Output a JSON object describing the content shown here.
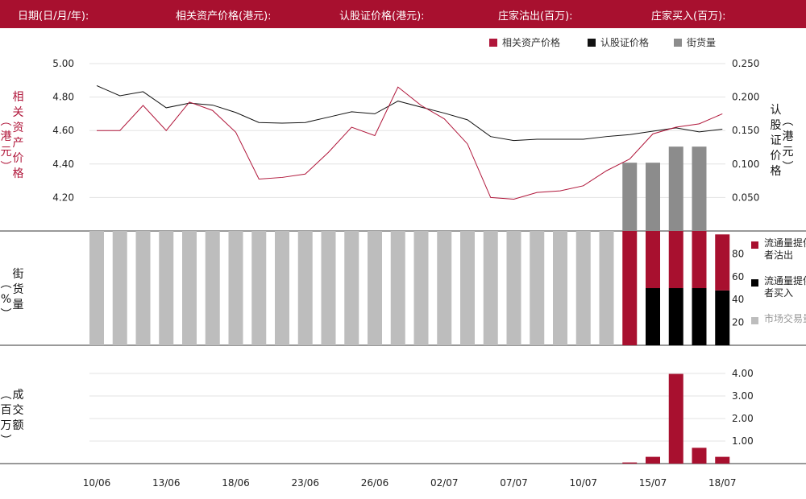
{
  "header": {
    "date_label": "日期(日/月/年):",
    "underlying_price_label": "相关资产价格(港元):",
    "warrant_price_label": "认股证价格(港元):",
    "mm_sell_label": "庄家沽出(百万):",
    "mm_buy_label": "庄家买入(百万):"
  },
  "legend": {
    "underlying": "相关资产价格",
    "warrant": "认股证价格",
    "outstanding": "街货量"
  },
  "axis_titles": {
    "left_top_main": "相关资产价格",
    "left_top_unit": "港元",
    "right_top_main": "认股证价格",
    "right_top_unit": "港元",
    "middle_main": "街货量",
    "middle_unit": "%",
    "bottom_main": "成交额",
    "bottom_unit": "百万"
  },
  "mid_legend": {
    "mm_sell": "流通量提供者沽出",
    "mm_buy": "流通量提供者买入",
    "market": "市场交易量"
  },
  "colors": {
    "brand": "#a8102f",
    "underlying": "#b0163a",
    "warrant": "#111111",
    "outstanding": "#8c8c8c",
    "market": "#bdbdbd",
    "mm_sell": "#a8102f",
    "mm_buy": "#000000"
  },
  "chart_data": {
    "type": "combo",
    "x_tick_labels": [
      "10/06",
      "13/06",
      "18/06",
      "23/06",
      "26/06",
      "02/07",
      "07/07",
      "10/07",
      "15/07",
      "18/07"
    ],
    "x_tick_indices": [
      0,
      3,
      6,
      9,
      12,
      15,
      18,
      21,
      24,
      27
    ],
    "n_days": 28,
    "price_panel": {
      "left_axis": {
        "ticks": [
          "5.00",
          "4.80",
          "4.60",
          "4.40",
          "4.20"
        ],
        "range": [
          4.0,
          5.0
        ]
      },
      "right_axis": {
        "ticks": [
          "0.250",
          "0.200",
          "0.150",
          "0.100",
          "0.050"
        ],
        "range": [
          0.0,
          0.25
        ]
      },
      "underlying": [
        4.6,
        4.6,
        4.75,
        4.6,
        4.77,
        4.72,
        4.59,
        4.31,
        4.32,
        4.34,
        4.47,
        4.62,
        4.57,
        4.86,
        4.75,
        4.67,
        4.52,
        4.2,
        4.19,
        4.23,
        4.24,
        4.27,
        4.36,
        4.43,
        4.58,
        4.62,
        4.64,
        4.7
      ],
      "warrant": [
        0.217,
        0.202,
        0.208,
        0.184,
        0.191,
        0.188,
        0.177,
        0.162,
        0.161,
        0.162,
        0.17,
        0.178,
        0.175,
        0.194,
        0.185,
        0.176,
        0.166,
        0.141,
        0.135,
        0.137,
        0.137,
        0.137,
        0.141,
        0.144,
        0.149,
        0.154,
        0.148,
        0.152
      ],
      "outstanding_pct": [
        null,
        null,
        null,
        null,
        null,
        null,
        null,
        null,
        null,
        null,
        null,
        null,
        null,
        null,
        null,
        null,
        null,
        null,
        null,
        null,
        null,
        null,
        null,
        102,
        102,
        126,
        126,
        null
      ],
      "outstanding_scale": [
        0,
        250
      ]
    },
    "share_panel": {
      "ticks": [
        "80",
        "60",
        "40",
        "20"
      ],
      "range": [
        0,
        100
      ],
      "mm_sell_pct": [
        0,
        0,
        0,
        0,
        0,
        0,
        0,
        0,
        0,
        0,
        0,
        0,
        0,
        0,
        0,
        0,
        0,
        0,
        0,
        0,
        0,
        0,
        0,
        100,
        50,
        50,
        50,
        49
      ],
      "mm_buy_pct": [
        0,
        0,
        0,
        0,
        0,
        0,
        0,
        0,
        0,
        0,
        0,
        0,
        0,
        0,
        0,
        0,
        0,
        0,
        0,
        0,
        0,
        0,
        0,
        0,
        50,
        50,
        50,
        48
      ],
      "market_pct": [
        100,
        100,
        100,
        100,
        100,
        100,
        100,
        100,
        100,
        100,
        100,
        100,
        100,
        100,
        100,
        100,
        100,
        100,
        100,
        100,
        100,
        100,
        100,
        0,
        0,
        0,
        0,
        0
      ]
    },
    "turnover_panel": {
      "ticks": [
        "4.00",
        "3.00",
        "2.00",
        "1.00"
      ],
      "range": [
        0,
        4.0
      ],
      "values": [
        0,
        0,
        0,
        0,
        0,
        0,
        0,
        0,
        0,
        0,
        0,
        0,
        0,
        0,
        0,
        0,
        0,
        0,
        0,
        0,
        0,
        0,
        0,
        0.05,
        0.3,
        3.98,
        0.7,
        0.3
      ]
    }
  }
}
